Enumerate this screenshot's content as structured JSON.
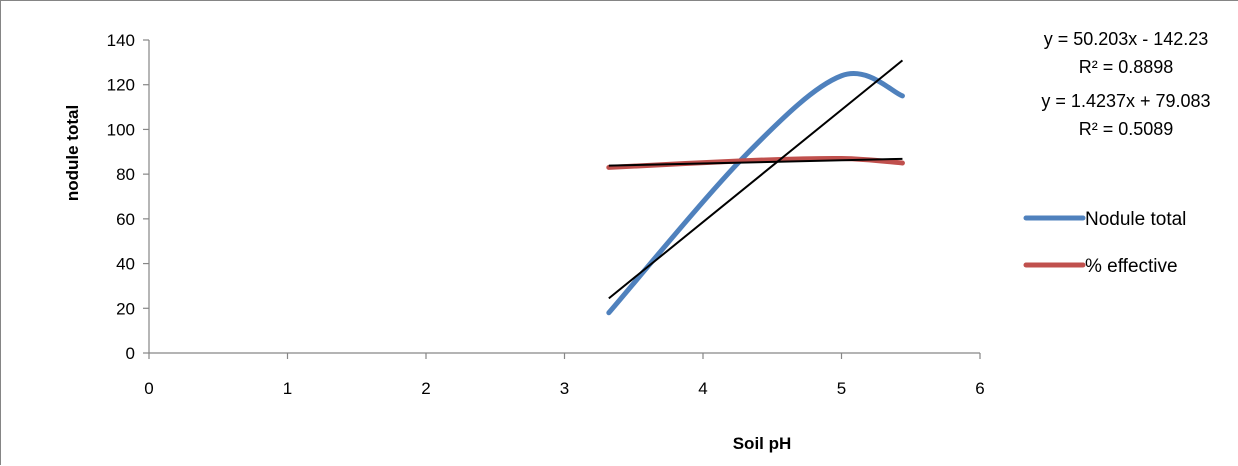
{
  "chart_data": {
    "type": "line",
    "title": "",
    "xlabel": "Soil pH",
    "ylabel": "nodule total",
    "xlim": [
      0,
      6
    ],
    "ylim": [
      0,
      140
    ],
    "x_ticks": [
      0,
      1,
      2,
      3,
      4,
      5,
      6
    ],
    "y_ticks": [
      0,
      20,
      40,
      60,
      80,
      100,
      120,
      140
    ],
    "grid": false,
    "legend_position": "right",
    "series": [
      {
        "name": "Nodule total",
        "color": "#4F81BD",
        "smooth": true,
        "x": [
          3.32,
          4.3,
          5.0,
          5.44
        ],
        "y": [
          18,
          88,
          124,
          115
        ]
      },
      {
        "name": "% effective",
        "color": "#C0504D",
        "smooth": true,
        "x": [
          3.32,
          4.3,
          5.0,
          5.44
        ],
        "y": [
          83,
          86,
          87,
          85
        ]
      }
    ],
    "trendlines": [
      {
        "color": "#000000",
        "slope": 50.203,
        "intercept": -142.23,
        "x_range": [
          3.32,
          5.44
        ]
      },
      {
        "color": "#000000",
        "slope": 1.4237,
        "intercept": 79.083,
        "x_range": [
          3.32,
          5.44
        ]
      }
    ],
    "annotations": [
      "y = 50.203x - 142.23",
      "R² = 0.8898",
      "y = 1.4237x + 79.083",
      "R² = 0.5089"
    ]
  }
}
